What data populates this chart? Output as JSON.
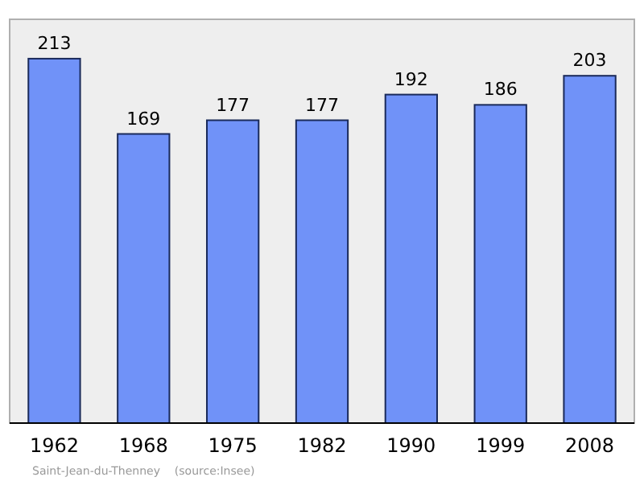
{
  "chart_data": {
    "type": "bar",
    "categories": [
      "1962",
      "1968",
      "1975",
      "1982",
      "1990",
      "1999",
      "2008"
    ],
    "values": [
      213,
      169,
      177,
      177,
      192,
      186,
      203
    ],
    "color": "#7092f8",
    "ylim": [
      0,
      236
    ],
    "data_labels": true,
    "annotations": [
      "Saint-Jean-du-Thenney    (source:Insee)"
    ]
  }
}
